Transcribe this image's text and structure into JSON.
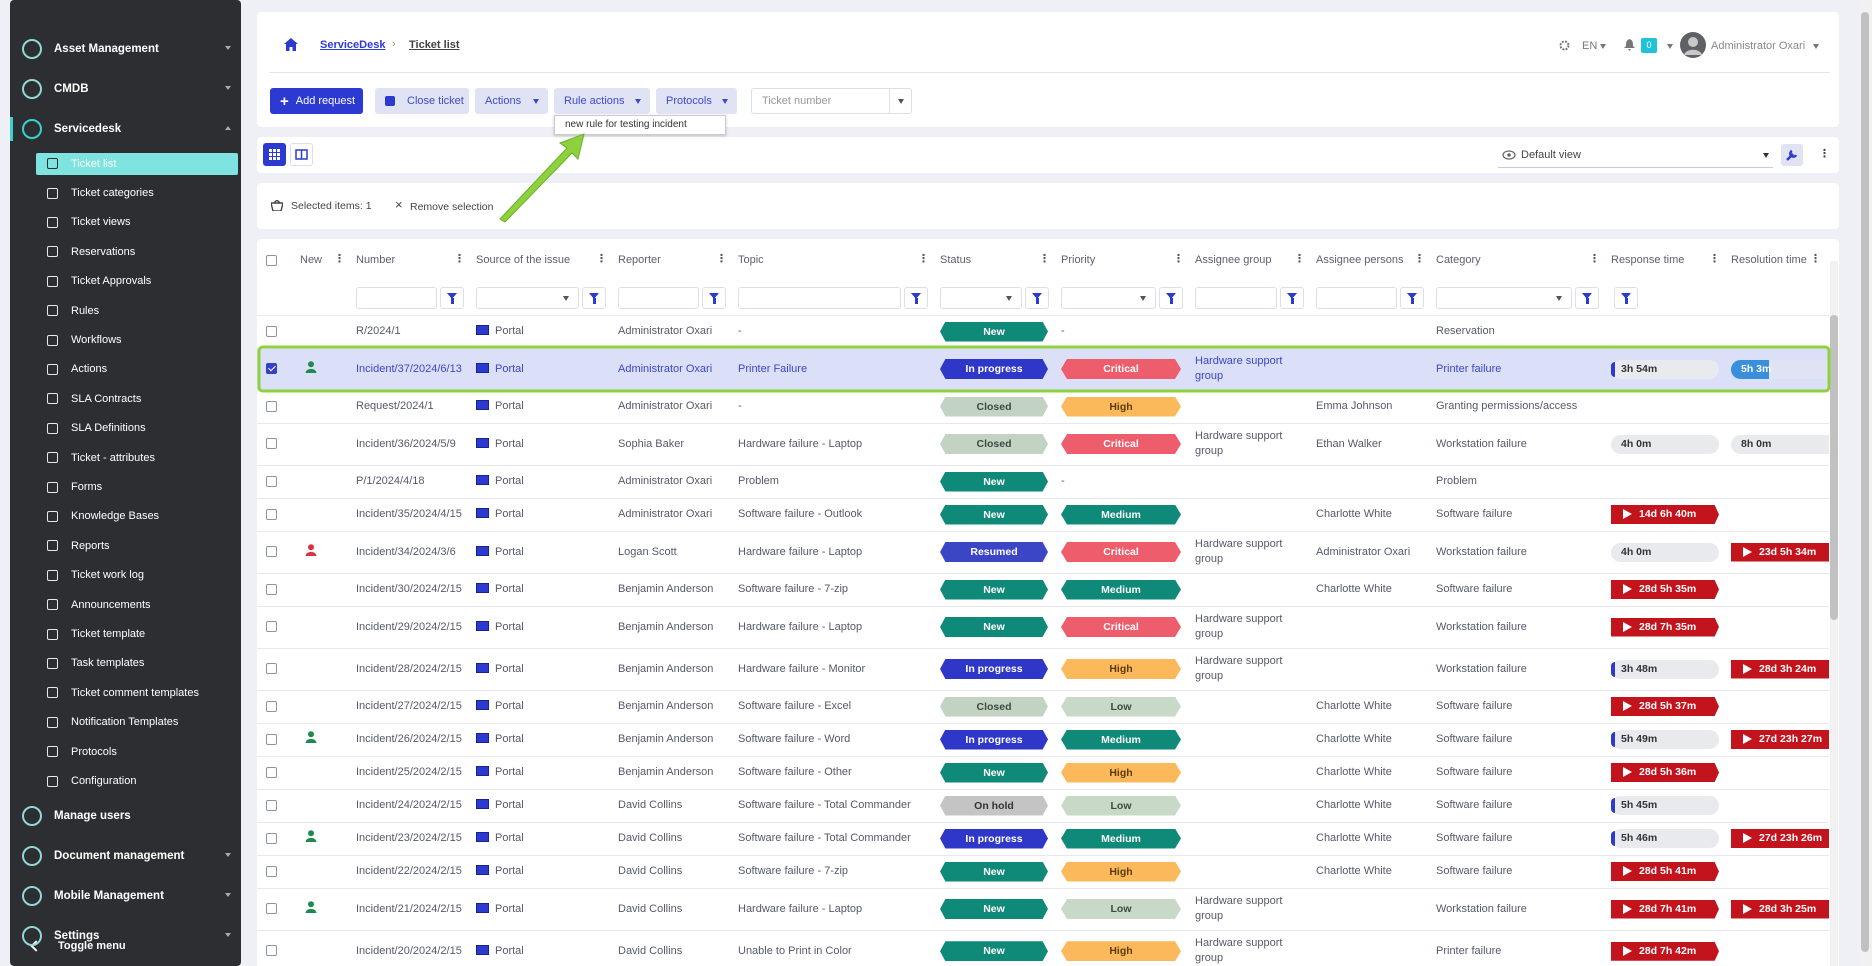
{
  "sidebar": {
    "menu": [
      {
        "label": "Asset Management",
        "expandable": true
      },
      {
        "label": "CMDB",
        "expandable": true
      },
      {
        "label": "Servicedesk",
        "expandable": true,
        "active": true,
        "children": [
          {
            "label": "Ticket list",
            "active": true
          },
          {
            "label": "Ticket categories"
          },
          {
            "label": "Ticket views"
          },
          {
            "label": "Reservations"
          },
          {
            "label": "Ticket Approvals"
          },
          {
            "label": "Rules"
          },
          {
            "label": "Workflows"
          },
          {
            "label": "Actions"
          },
          {
            "label": "SLA Contracts"
          },
          {
            "label": "SLA Definitions"
          },
          {
            "label": "Ticket - attributes"
          },
          {
            "label": "Forms"
          },
          {
            "label": "Knowledge Bases"
          },
          {
            "label": "Reports"
          },
          {
            "label": "Ticket work log"
          },
          {
            "label": "Announcements"
          },
          {
            "label": "Ticket template"
          },
          {
            "label": "Task templates"
          },
          {
            "label": "Ticket comment templates"
          },
          {
            "label": "Notification Templates"
          },
          {
            "label": "Protocols"
          },
          {
            "label": "Configuration"
          }
        ]
      },
      {
        "label": "Manage users"
      },
      {
        "label": "Document management",
        "expandable": true
      },
      {
        "label": "Mobile Management",
        "expandable": true
      },
      {
        "label": "Settings",
        "expandable": true
      }
    ],
    "toggle": "Toggle menu"
  },
  "header": {
    "breadcrumb": [
      "ServiceDesk",
      "Ticket list"
    ],
    "language": "EN",
    "notifications": "0",
    "user": "Administrator Oxari"
  },
  "toolbar": {
    "add_request": "Add request",
    "close_ticket": "Close ticket",
    "actions": "Actions",
    "rule_actions": "Rule actions",
    "protocols": "Protocols",
    "ticket_number": "Ticket number",
    "rule_actions_menu": [
      "new rule for testing incident"
    ]
  },
  "view": {
    "selected_view": "Default view"
  },
  "selection": {
    "selected_items": "Selected items: 1",
    "remove": "Remove selection"
  },
  "table": {
    "badge_colors": {
      "New": {
        "bg": "#0f8a78",
        "fg": "#ffffff"
      },
      "In progress": {
        "bg": "#2f37c8",
        "fg": "#ffffff"
      },
      "Closed": {
        "bg": "#c3d3c3",
        "fg": "#3d4a3d"
      },
      "Resumed": {
        "bg": "#3a46c6",
        "fg": "#ffffff"
      },
      "On hold": {
        "bg": "#c4c4c4",
        "fg": "#333333"
      },
      "Critical": {
        "bg": "#ee5d6c",
        "fg": "#ffffff"
      },
      "High": {
        "bg": "#fbb95c",
        "fg": "#5a3c00"
      },
      "Medium": {
        "bg": "#0f8a78",
        "fg": "#ffffff"
      },
      "Low": {
        "bg": "#c8d9c8",
        "fg": "#3d4a3d"
      }
    },
    "columns": [
      {
        "label": "New",
        "key": "new_icon",
        "filter": "none"
      },
      {
        "label": "Number",
        "key": "number",
        "filter": "text"
      },
      {
        "label": "Source of the issue",
        "key": "source",
        "filter": "select"
      },
      {
        "label": "Reporter",
        "key": "reporter",
        "filter": "text"
      },
      {
        "label": "Topic",
        "key": "topic",
        "filter": "text"
      },
      {
        "label": "Status",
        "key": "status",
        "filter": "select"
      },
      {
        "label": "Priority",
        "key": "priority",
        "filter": "select"
      },
      {
        "label": "Assignee group",
        "key": "assignee_group",
        "filter": "text"
      },
      {
        "label": "Assignee persons",
        "key": "assignee_persons",
        "filter": "text"
      },
      {
        "label": "Category",
        "key": "category",
        "filter": "select"
      },
      {
        "label": "Response time",
        "key": "response_time",
        "filter": "button"
      },
      {
        "label": "Resolution time",
        "key": "resolution_time",
        "filter": "none"
      }
    ],
    "rows": [
      {
        "number": "R/2024/1",
        "source": "Portal",
        "reporter": "Administrator Oxari",
        "topic": "-",
        "status": "New",
        "priority": "-",
        "category": "Reservation"
      },
      {
        "selected": true,
        "new_icon": "#1f8a4e",
        "number": "Incident/37/2024/6/13",
        "source": "Portal",
        "reporter": "Administrator Oxari",
        "topic": "Printer Failure",
        "status": "In progress",
        "priority": "Critical",
        "assignee_group": "Hardware support group",
        "category": "Printer failure",
        "response_time": {
          "label": "3h 54m",
          "state": "running"
        },
        "resolution_time": {
          "label": "5h 3m",
          "state": "active"
        }
      },
      {
        "number": "Request/2024/1",
        "source": "Portal",
        "reporter": "Administrator Oxari",
        "topic": "-",
        "status": "Closed",
        "priority": "High",
        "assignee_persons": "Emma Johnson",
        "category": "Granting permissions/access"
      },
      {
        "number": "Incident/36/2024/5/9",
        "source": "Portal",
        "reporter": "Sophia Baker",
        "topic": "Hardware failure - Laptop",
        "status": "Closed",
        "priority": "Critical",
        "assignee_group": "Hardware support group",
        "assignee_persons": "Ethan Walker",
        "category": "Workstation failure",
        "response_time": {
          "label": "4h 0m",
          "state": "idle"
        },
        "resolution_time": {
          "label": "8h 0m",
          "state": "idle"
        }
      },
      {
        "number": "P/1/2024/4/18",
        "source": "Portal",
        "reporter": "Administrator Oxari",
        "topic": "Problem",
        "status": "New",
        "priority": "-",
        "category": "Problem"
      },
      {
        "number": "Incident/35/2024/4/15",
        "source": "Portal",
        "reporter": "Administrator Oxari",
        "topic": "Software failure - Outlook",
        "status": "New",
        "priority": "Medium",
        "assignee_persons": "Charlotte White",
        "category": "Software failure",
        "response_time": {
          "label": "14d 6h 40m",
          "state": "overdue"
        }
      },
      {
        "new_icon": "#d6343f",
        "number": "Incident/34/2024/3/6",
        "source": "Portal",
        "reporter": "Logan Scott",
        "topic": "Hardware failure - Laptop",
        "status": "Resumed",
        "priority": "Critical",
        "assignee_group": "Hardware support group",
        "assignee_persons": "Administrator Oxari",
        "category": "Workstation failure",
        "response_time": {
          "label": "4h 0m",
          "state": "idle"
        },
        "resolution_time": {
          "label": "23d 5h 34m",
          "state": "overdue"
        }
      },
      {
        "number": "Incident/30/2024/2/15",
        "source": "Portal",
        "reporter": "Benjamin Anderson",
        "topic": "Software failure - 7-zip",
        "status": "New",
        "priority": "Medium",
        "assignee_persons": "Charlotte White",
        "category": "Software failure",
        "response_time": {
          "label": "28d 5h 35m",
          "state": "overdue"
        }
      },
      {
        "number": "Incident/29/2024/2/15",
        "source": "Portal",
        "reporter": "Benjamin Anderson",
        "topic": "Hardware failure - Laptop",
        "status": "New",
        "priority": "Critical",
        "assignee_group": "Hardware support group",
        "category": "Workstation failure",
        "response_time": {
          "label": "28d 7h 35m",
          "state": "overdue"
        }
      },
      {
        "number": "Incident/28/2024/2/15",
        "source": "Portal",
        "reporter": "Benjamin Anderson",
        "topic": "Hardware failure - Monitor",
        "status": "In progress",
        "priority": "High",
        "assignee_group": "Hardware support group",
        "category": "Workstation failure",
        "response_time": {
          "label": "3h 48m",
          "state": "running"
        },
        "resolution_time": {
          "label": "28d 3h 24m",
          "state": "overdue"
        }
      },
      {
        "number": "Incident/27/2024/2/15",
        "source": "Portal",
        "reporter": "Benjamin Anderson",
        "topic": "Software failure - Excel",
        "status": "Closed",
        "priority": "Low",
        "assignee_persons": "Charlotte White",
        "category": "Software failure",
        "response_time": {
          "label": "28d 5h 37m",
          "state": "overdue"
        }
      },
      {
        "new_icon": "#1f8a4e",
        "number": "Incident/26/2024/2/15",
        "source": "Portal",
        "reporter": "Benjamin Anderson",
        "topic": "Software failure - Word",
        "status": "In progress",
        "priority": "Medium",
        "assignee_persons": "Charlotte White",
        "category": "Software failure",
        "response_time": {
          "label": "5h 49m",
          "state": "running"
        },
        "resolution_time": {
          "label": "27d 23h 27m",
          "state": "overdue"
        }
      },
      {
        "number": "Incident/25/2024/2/15",
        "source": "Portal",
        "reporter": "Benjamin Anderson",
        "topic": "Software failure - Other",
        "status": "New",
        "priority": "High",
        "assignee_persons": "Charlotte White",
        "category": "Software failure",
        "response_time": {
          "label": "28d 5h 36m",
          "state": "overdue"
        }
      },
      {
        "number": "Incident/24/2024/2/15",
        "source": "Portal",
        "reporter": "David Collins",
        "topic": "Software failure - Total Commander",
        "status": "On hold",
        "priority": "Low",
        "assignee_persons": "Charlotte White",
        "category": "Software failure",
        "response_time": {
          "label": "5h 45m",
          "state": "running"
        }
      },
      {
        "new_icon": "#1f8a4e",
        "number": "Incident/23/2024/2/15",
        "source": "Portal",
        "reporter": "David Collins",
        "topic": "Software failure - Total Commander",
        "status": "In progress",
        "priority": "Medium",
        "assignee_persons": "Charlotte White",
        "category": "Software failure",
        "response_time": {
          "label": "5h 46m",
          "state": "running"
        },
        "resolution_time": {
          "label": "27d 23h 26m",
          "state": "overdue"
        }
      },
      {
        "number": "Incident/22/2024/2/15",
        "source": "Portal",
        "reporter": "David Collins",
        "topic": "Software failure - 7-zip",
        "status": "New",
        "priority": "High",
        "assignee_persons": "Charlotte White",
        "category": "Software failure",
        "response_time": {
          "label": "28d 5h 41m",
          "state": "overdue"
        }
      },
      {
        "new_icon": "#1f8a4e",
        "number": "Incident/21/2024/2/15",
        "source": "Portal",
        "reporter": "David Collins",
        "topic": "Hardware failure - Laptop",
        "status": "New",
        "priority": "Low",
        "assignee_group": "Hardware support group",
        "category": "Workstation failure",
        "response_time": {
          "label": "28d 7h 41m",
          "state": "overdue"
        },
        "resolution_time": {
          "label": "28d 3h 25m",
          "state": "overdue"
        }
      },
      {
        "number": "Incident/20/2024/2/15",
        "source": "Portal",
        "reporter": "David Collins",
        "topic": "Unable to Print in Color",
        "status": "New",
        "priority": "High",
        "assignee_group": "Hardware support group",
        "category": "Printer failure",
        "response_time": {
          "label": "28d 7h 42m",
          "state": "overdue"
        }
      }
    ]
  }
}
